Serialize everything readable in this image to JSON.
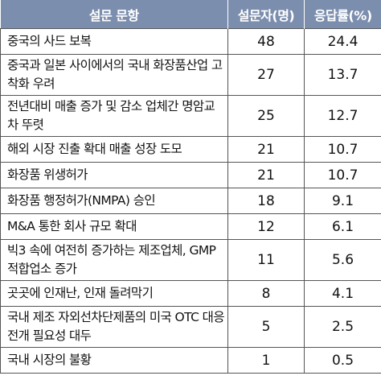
{
  "table": {
    "headers": [
      "설문 문항",
      "설문자(명)",
      "응답률(%)"
    ],
    "rows": [
      {
        "item": "중국의 사드 보복",
        "count": "48",
        "rate": "24.4"
      },
      {
        "item": "중국과 일본 사이에서의 국내 화장품산업 고착화 우려",
        "count": "27",
        "rate": "13.7"
      },
      {
        "item": "전년대비 매출 증가 및 감소 업체간 명암교차 뚜렷",
        "count": "25",
        "rate": "12.7"
      },
      {
        "item": "해외 시장 진출 확대 매출 성장 도모",
        "count": "21",
        "rate": "10.7"
      },
      {
        "item": "화장품 위생허가",
        "count": "21",
        "rate": "10.7"
      },
      {
        "item": "화장품 행정허가(NMPA) 승인",
        "count": "18",
        "rate": "9.1"
      },
      {
        "item": "M&A 통한 회사 규모 확대",
        "count": "12",
        "rate": "6.1"
      },
      {
        "item": "빅3 속에 여전히 증가하는 제조업체, GMP적합업소 증가",
        "count": "11",
        "rate": "5.6"
      },
      {
        "item": "곳곳에 인재난, 인재 돌려막기",
        "count": "8",
        "rate": "4.1"
      },
      {
        "item": "국내 제조 자외선차단제품의 미국 OTC 대응 전개 필요성 대두",
        "count": "5",
        "rate": "2.5"
      },
      {
        "item": "국내 시장의 불황",
        "count": "1",
        "rate": "0.5"
      }
    ]
  }
}
